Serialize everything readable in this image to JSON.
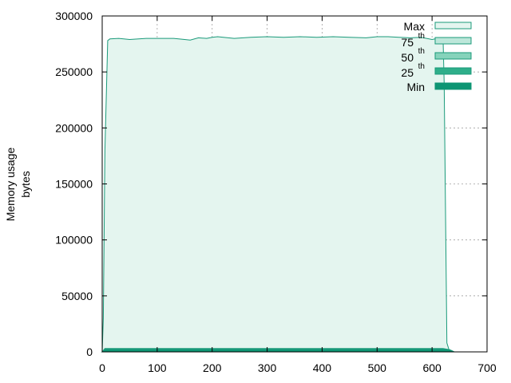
{
  "chart_data": {
    "type": "area",
    "title": "",
    "xlabel": "",
    "ylabel_lines": [
      "Memory usage",
      "bytes"
    ],
    "xlim": [
      0,
      700
    ],
    "ylim": [
      0,
      300000
    ],
    "xticks": [
      0,
      100,
      200,
      300,
      400,
      500,
      600,
      700
    ],
    "yticks": [
      0,
      50000,
      100000,
      150000,
      200000,
      250000,
      300000
    ],
    "grid": true,
    "legend_position": "top-right",
    "series": [
      {
        "name": "Max",
        "superscript": "",
        "color": "#e4f5ef",
        "stroke": "#1a9a7a",
        "x": [
          0,
          2,
          5,
          10,
          14,
          30,
          50,
          80,
          100,
          130,
          150,
          160,
          175,
          190,
          200,
          210,
          240,
          270,
          300,
          330,
          360,
          390,
          420,
          450,
          480,
          500,
          520,
          540,
          560,
          580,
          600,
          610,
          620,
          622,
          627,
          632,
          640
        ],
        "values": [
          0,
          30000,
          180000,
          278000,
          279500,
          280000,
          279000,
          280000,
          280000,
          280000,
          279000,
          278500,
          280500,
          280000,
          281000,
          281500,
          280000,
          281000,
          281500,
          281000,
          281500,
          281000,
          281500,
          281000,
          280500,
          281500,
          281500,
          281000,
          280500,
          281000,
          279000,
          280000,
          280000,
          240000,
          8000,
          0,
          0
        ]
      },
      {
        "name": "75",
        "superscript": "th",
        "color": "#bde7da",
        "stroke": "#1a9a7a",
        "x": [
          0,
          5,
          620,
          632,
          640
        ],
        "values": [
          0,
          3000,
          3000,
          2000,
          0
        ]
      },
      {
        "name": "50",
        "superscript": "th",
        "color": "#86d3bb",
        "stroke": "#1a9a7a",
        "x": [
          0,
          5,
          620,
          632,
          640
        ],
        "values": [
          0,
          2500,
          2500,
          1800,
          0
        ]
      },
      {
        "name": "25",
        "superscript": "th",
        "color": "#2eae8a",
        "stroke": "#1a9a7a",
        "x": [
          0,
          5,
          620,
          632,
          640
        ],
        "values": [
          0,
          2000,
          2000,
          1500,
          0
        ]
      },
      {
        "name": "Min",
        "superscript": "",
        "color": "#0d9573",
        "stroke": "#0d9573",
        "x": [
          0,
          5,
          620,
          635,
          640
        ],
        "values": [
          0,
          1500,
          1500,
          1200,
          0
        ]
      }
    ]
  }
}
